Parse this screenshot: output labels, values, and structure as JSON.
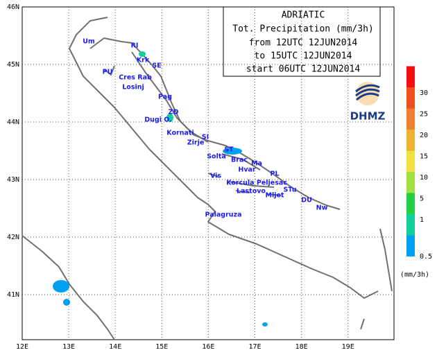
{
  "map": {
    "title_lines": [
      "ADRIATIC",
      "Tot. Precipitation (mm/3h)",
      "from 12UTC 12JUN2014",
      "to 15UTC 12JUN2014",
      "start 06UTC 12JUN2014"
    ],
    "lon_ticks": [
      {
        "value": 12,
        "label": "12E"
      },
      {
        "value": 13,
        "label": "13E"
      },
      {
        "value": 14,
        "label": "14E"
      },
      {
        "value": 15,
        "label": "15E"
      },
      {
        "value": 16,
        "label": "16E"
      },
      {
        "value": 17,
        "label": "17E"
      },
      {
        "value": 18,
        "label": "18E"
      },
      {
        "value": 19,
        "label": "19E"
      }
    ],
    "lat_ticks": [
      {
        "value": 46,
        "label": "46N"
      },
      {
        "value": 45,
        "label": "45N"
      },
      {
        "value": 44,
        "label": "44N"
      },
      {
        "value": 43,
        "label": "43N"
      },
      {
        "value": 42,
        "label": "42N"
      },
      {
        "value": 41,
        "label": "41N"
      }
    ],
    "places": [
      "Um",
      "RI",
      "Krk",
      "SE",
      "PU",
      "Cres Rab",
      "Losinj",
      "Pag",
      "ZD",
      "Dugi O.",
      "Kornati",
      "SI",
      "Zirje",
      "ST",
      "Solta",
      "Brac",
      "Ma",
      "Hvar",
      "PL",
      "Vis",
      "Korcula Peljesac",
      "Lastovo",
      "STu",
      "Mljet",
      "DU",
      "Nw",
      "Palagruza"
    ],
    "logo": "DHMZ",
    "legend": {
      "levels": [
        0.5,
        1,
        5,
        10,
        15,
        20,
        25,
        30
      ],
      "colors": [
        "#00a0f0",
        "#10d0a0",
        "#20d040",
        "#a0e040",
        "#f0e040",
        "#f0b030",
        "#f08030",
        "#f05020",
        "#f01010"
      ],
      "unit": "(mm/3h)"
    }
  }
}
